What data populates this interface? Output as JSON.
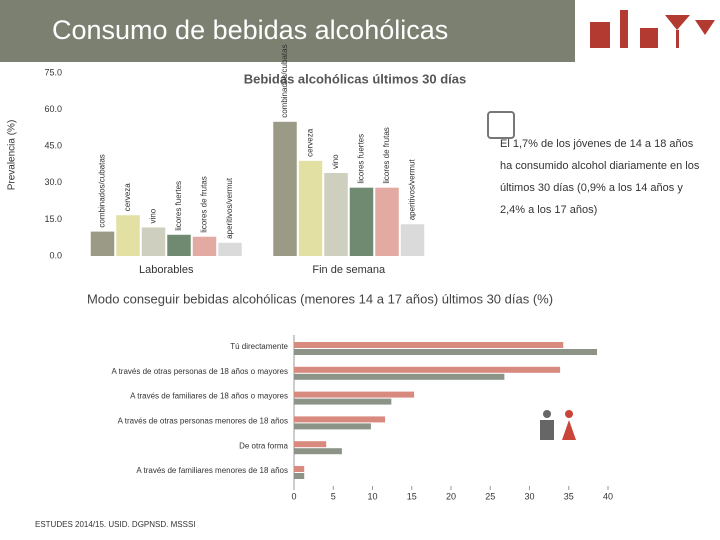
{
  "title": "Consumo de bebidas alcohólicas",
  "annotation": "El 1,7% de los jóvenes de 14 a 18 años ha consumido alcohol diariamente en los últimos 30 días (0,9% a los 14 años y 2,4% a los 17 años)",
  "source": "ESTUDES 2014/15. USID. DGPNSD. MSSSI",
  "chart_data": [
    {
      "type": "bar",
      "title": "Bebidas alcohólicas últimos 30 días",
      "y_label": "Prevalencia (%)",
      "categories": [
        "Laborables",
        "Fin de semana"
      ],
      "series": [
        {
          "name": "combinados/cubatas",
          "color": "#9b9a86",
          "values": [
            10,
            55
          ]
        },
        {
          "name": "cerveza",
          "color": "#e3e0a3",
          "values": [
            16.7,
            39
          ]
        },
        {
          "name": "vino",
          "color": "#cfcfbf",
          "values": [
            11.7,
            34
          ]
        },
        {
          "name": "licores fuertes",
          "color": "#6f8a71",
          "values": [
            8.7,
            28
          ]
        },
        {
          "name": "licores de frutas",
          "color": "#e2aaa2",
          "values": [
            7.9,
            28
          ]
        },
        {
          "name": "aperitivos/vermut",
          "color": "#dadada",
          "values": [
            5.4,
            13
          ]
        }
      ],
      "ylim": [
        0,
        75
      ],
      "yticks": [
        {
          "value": 0,
          "label": "0.0"
        },
        {
          "value": 15,
          "label": "15.0"
        },
        {
          "value": 30,
          "label": "30.0"
        },
        {
          "value": 45,
          "label": "45.0"
        },
        {
          "value": 60,
          "label": "60.0"
        },
        {
          "value": 75,
          "label": "75.0"
        }
      ]
    },
    {
      "type": "bar",
      "horizontal": true,
      "title": "Modo conseguir bebidas alcohólicas (menores 14 a 17 años) últimos 30 días (%)",
      "categories": [
        "Tú directamente",
        "A través de otras personas de 18 años o mayores",
        "A través de familiares de 18 años o mayores",
        "A través de otras personas menores de 18 años",
        "De otra forma",
        "A través de familiares menores de 18 años"
      ],
      "series": [
        {
          "color": "#d98a7e",
          "values": [
            34.3,
            33.9,
            15.3,
            11.6,
            4.1,
            1.3
          ]
        },
        {
          "color": "#8c9488",
          "values": [
            38.6,
            26.8,
            12.4,
            9.8,
            6.1,
            1.3
          ]
        }
      ],
      "xlim": [
        0,
        40
      ],
      "xticks": [
        0,
        5,
        10,
        15,
        20,
        25,
        30,
        35,
        40
      ]
    }
  ]
}
